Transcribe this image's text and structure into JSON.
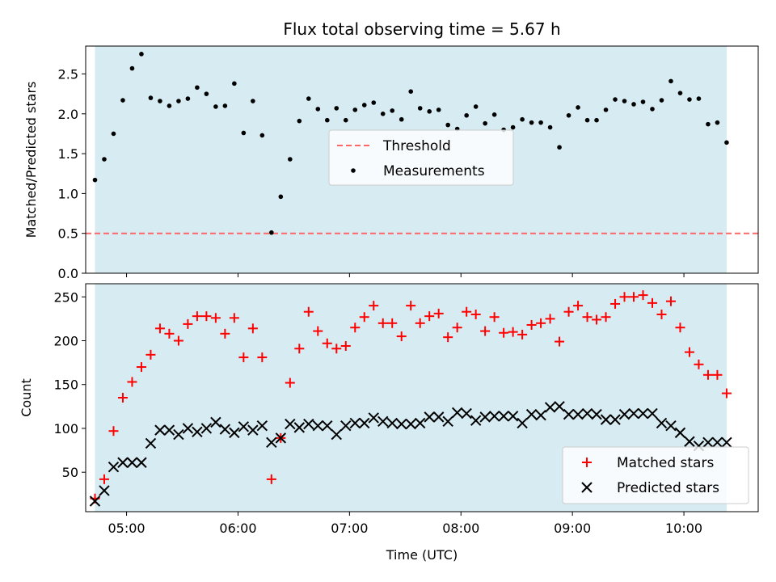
{
  "chart_data": [
    {
      "type": "scatter",
      "title": "Flux total observing time = 5.67 h",
      "xlabel": "",
      "ylabel": "Matched/Predicted stars",
      "x_type": "time",
      "xlim": [
        "04:38",
        "10:40"
      ],
      "ylim": [
        0,
        2.85
      ],
      "yticks": [
        0.0,
        0.5,
        1.0,
        1.5,
        2.0,
        2.5
      ],
      "ytick_labels": [
        "0.0",
        "0.5",
        "1.0",
        "1.5",
        "2.0",
        "2.5"
      ],
      "observing_span": [
        "04:43",
        "10:23"
      ],
      "threshold": 0.5,
      "legend_position": "center",
      "legend": [
        {
          "label": "Threshold",
          "color": "#ff6666",
          "marker": "dashed-line"
        },
        {
          "label": "Measurements",
          "color": "#000000",
          "marker": "dot"
        }
      ],
      "series": [
        {
          "name": "Measurements",
          "x": [
            "04:43",
            "04:48",
            "04:53",
            "04:58",
            "05:03",
            "05:08",
            "05:13",
            "05:18",
            "05:23",
            "05:28",
            "05:33",
            "05:38",
            "05:43",
            "05:48",
            "05:53",
            "05:58",
            "06:03",
            "06:08",
            "06:13",
            "06:18",
            "06:23",
            "06:28",
            "06:33",
            "06:38",
            "06:43",
            "06:48",
            "06:53",
            "06:58",
            "07:03",
            "07:08",
            "07:13",
            "07:18",
            "07:23",
            "07:28",
            "07:33",
            "07:38",
            "07:43",
            "07:48",
            "07:53",
            "07:58",
            "08:03",
            "08:08",
            "08:13",
            "08:18",
            "08:23",
            "08:28",
            "08:33",
            "08:38",
            "08:43",
            "08:48",
            "08:53",
            "08:58",
            "09:03",
            "09:08",
            "09:13",
            "09:18",
            "09:23",
            "09:28",
            "09:33",
            "09:38",
            "09:43",
            "09:48",
            "09:53",
            "09:58",
            "10:03",
            "10:08",
            "10:13",
            "10:18",
            "10:23"
          ],
          "y": [
            1.17,
            1.43,
            1.75,
            2.17,
            2.57,
            2.75,
            2.2,
            2.16,
            2.1,
            2.16,
            2.19,
            2.33,
            2.25,
            2.09,
            2.1,
            2.38,
            1.76,
            2.16,
            1.73,
            0.51,
            0.96,
            1.43,
            1.91,
            2.19,
            2.06,
            1.92,
            2.07,
            1.92,
            2.05,
            2.11,
            2.14,
            2.0,
            2.04,
            1.93,
            2.28,
            2.07,
            2.03,
            2.05,
            1.86,
            1.81,
            1.98,
            2.09,
            1.88,
            1.99,
            1.8,
            1.83,
            1.93,
            1.89,
            1.89,
            1.83,
            1.58,
            1.98,
            2.08,
            1.92,
            1.92,
            2.05,
            2.18,
            2.16,
            2.12,
            2.15,
            2.06,
            2.17,
            2.41,
            2.26,
            2.18,
            2.19,
            1.87,
            1.89,
            1.64
          ]
        }
      ]
    },
    {
      "type": "scatter",
      "title": "",
      "xlabel": "Time (UTC)",
      "ylabel": "Count",
      "x_type": "time",
      "xlim": [
        "04:38",
        "10:40"
      ],
      "ylim": [
        5,
        265
      ],
      "xticks": [
        "05:00",
        "06:00",
        "07:00",
        "08:00",
        "09:00",
        "10:00"
      ],
      "yticks": [
        50,
        100,
        150,
        200,
        250
      ],
      "ytick_labels": [
        "50",
        "100",
        "150",
        "200",
        "250"
      ],
      "observing_span": [
        "04:43",
        "10:23"
      ],
      "legend_position": "lower right",
      "legend": [
        {
          "label": "Matched stars",
          "color": "#ff0000",
          "marker": "plus"
        },
        {
          "label": "Predicted stars",
          "color": "#000000",
          "marker": "x"
        }
      ],
      "series": [
        {
          "name": "Matched stars",
          "color": "#ff0000",
          "x": [
            "04:43",
            "04:48",
            "04:53",
            "04:58",
            "05:03",
            "05:08",
            "05:13",
            "05:18",
            "05:23",
            "05:28",
            "05:33",
            "05:38",
            "05:43",
            "05:48",
            "05:53",
            "05:58",
            "06:03",
            "06:08",
            "06:13",
            "06:18",
            "06:23",
            "06:28",
            "06:33",
            "06:38",
            "06:43",
            "06:48",
            "06:53",
            "06:58",
            "07:03",
            "07:08",
            "07:13",
            "07:18",
            "07:23",
            "07:28",
            "07:33",
            "07:38",
            "07:43",
            "07:48",
            "07:53",
            "07:58",
            "08:03",
            "08:08",
            "08:13",
            "08:18",
            "08:23",
            "08:28",
            "08:33",
            "08:38",
            "08:43",
            "08:48",
            "08:53",
            "08:58",
            "09:03",
            "09:08",
            "09:13",
            "09:18",
            "09:23",
            "09:28",
            "09:33",
            "09:38",
            "09:43",
            "09:48",
            "09:53",
            "09:58",
            "10:03",
            "10:08",
            "10:13",
            "10:18",
            "10:23"
          ],
          "y": [
            20,
            42,
            97,
            135,
            153,
            170,
            184,
            214,
            208,
            200,
            219,
            228,
            228,
            226,
            208,
            226,
            181,
            214,
            181,
            42,
            89,
            152,
            191,
            233,
            211,
            197,
            191,
            194,
            215,
            227,
            240,
            220,
            220,
            205,
            240,
            220,
            228,
            231,
            204,
            215,
            233,
            230,
            211,
            227,
            209,
            210,
            207,
            218,
            220,
            225,
            199,
            233,
            240,
            227,
            224,
            227,
            242,
            250,
            250,
            252,
            243,
            230,
            245,
            215,
            187,
            173,
            161,
            161,
            140
          ]
        },
        {
          "name": "Predicted stars",
          "color": "#000000",
          "x": [
            "04:43",
            "04:48",
            "04:53",
            "04:58",
            "05:03",
            "05:08",
            "05:13",
            "05:18",
            "05:23",
            "05:28",
            "05:33",
            "05:38",
            "05:43",
            "05:48",
            "05:53",
            "05:58",
            "06:03",
            "06:08",
            "06:13",
            "06:18",
            "06:23",
            "06:28",
            "06:33",
            "06:38",
            "06:43",
            "06:48",
            "06:53",
            "06:58",
            "07:03",
            "07:08",
            "07:13",
            "07:18",
            "07:23",
            "07:28",
            "07:33",
            "07:38",
            "07:43",
            "07:48",
            "07:53",
            "07:58",
            "08:03",
            "08:08",
            "08:13",
            "08:18",
            "08:23",
            "08:28",
            "08:33",
            "08:38",
            "08:43",
            "08:48",
            "08:53",
            "08:58",
            "09:03",
            "09:08",
            "09:13",
            "09:18",
            "09:23",
            "09:28",
            "09:33",
            "09:38",
            "09:43",
            "09:48",
            "09:53",
            "09:58",
            "10:03",
            "10:08",
            "10:13",
            "10:18",
            "10:23"
          ],
          "y": [
            17,
            29,
            56,
            61,
            61,
            61,
            83,
            98,
            98,
            93,
            100,
            96,
            100,
            107,
            99,
            95,
            102,
            98,
            103,
            84,
            89,
            105,
            101,
            105,
            103,
            103,
            93,
            103,
            106,
            106,
            112,
            108,
            106,
            105,
            105,
            106,
            113,
            113,
            108,
            118,
            117,
            109,
            113,
            114,
            114,
            114,
            106,
            116,
            115,
            124,
            125,
            116,
            116,
            117,
            116,
            110,
            110,
            116,
            117,
            117,
            117,
            106,
            103,
            95,
            85,
            80,
            84,
            84,
            84
          ]
        }
      ]
    }
  ]
}
